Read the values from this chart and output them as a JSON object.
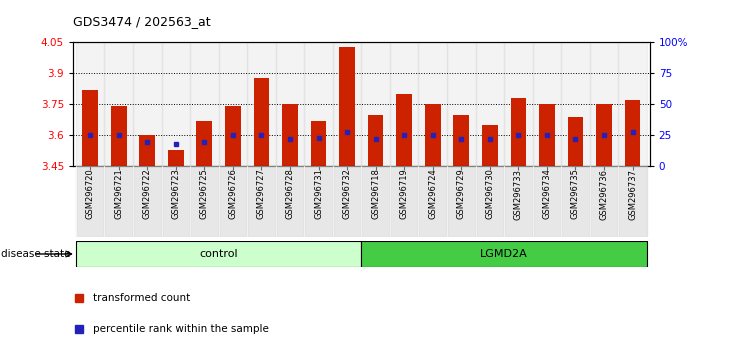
{
  "title": "GDS3474 / 202563_at",
  "samples": [
    "GSM296720",
    "GSM296721",
    "GSM296722",
    "GSM296723",
    "GSM296725",
    "GSM296726",
    "GSM296727",
    "GSM296728",
    "GSM296731",
    "GSM296732",
    "GSM296718",
    "GSM296719",
    "GSM296724",
    "GSM296729",
    "GSM296730",
    "GSM296733",
    "GSM296734",
    "GSM296735",
    "GSM296736",
    "GSM296737"
  ],
  "bar_values": [
    3.82,
    3.74,
    3.6,
    3.53,
    3.67,
    3.74,
    3.88,
    3.75,
    3.67,
    4.03,
    3.7,
    3.8,
    3.75,
    3.7,
    3.65,
    3.78,
    3.75,
    3.69,
    3.75,
    3.77
  ],
  "percentile_values": [
    25,
    25,
    20,
    18,
    20,
    25,
    25,
    22,
    23,
    28,
    22,
    25,
    25,
    22,
    22,
    25,
    25,
    22,
    25,
    28
  ],
  "groups": [
    "control",
    "control",
    "control",
    "control",
    "control",
    "control",
    "control",
    "control",
    "control",
    "control",
    "LGMD2A",
    "LGMD2A",
    "LGMD2A",
    "LGMD2A",
    "LGMD2A",
    "LGMD2A",
    "LGMD2A",
    "LGMD2A",
    "LGMD2A",
    "LGMD2A"
  ],
  "ylim_left": [
    3.45,
    4.05
  ],
  "ylim_right": [
    0,
    100
  ],
  "yticks_left": [
    3.45,
    3.6,
    3.75,
    3.9,
    4.05
  ],
  "yticks_right": [
    0,
    25,
    50,
    75,
    100
  ],
  "ytick_labels_left": [
    "3.45",
    "3.6",
    "3.75",
    "3.9",
    "4.05"
  ],
  "ytick_labels_right": [
    "0",
    "25",
    "50",
    "75",
    "100%"
  ],
  "bar_color": "#cc2200",
  "dot_color": "#2222bb",
  "control_color": "#ccffcc",
  "lgmd_color": "#44cc44",
  "grid_color": "#000000",
  "bg_color": "#ffffff",
  "legend_items": [
    "transformed count",
    "percentile rank within the sample"
  ],
  "disease_label": "disease state",
  "control_label": "control",
  "lgmd_label": "LGMD2A",
  "ctrl_count": 10,
  "lgmd_count": 10
}
